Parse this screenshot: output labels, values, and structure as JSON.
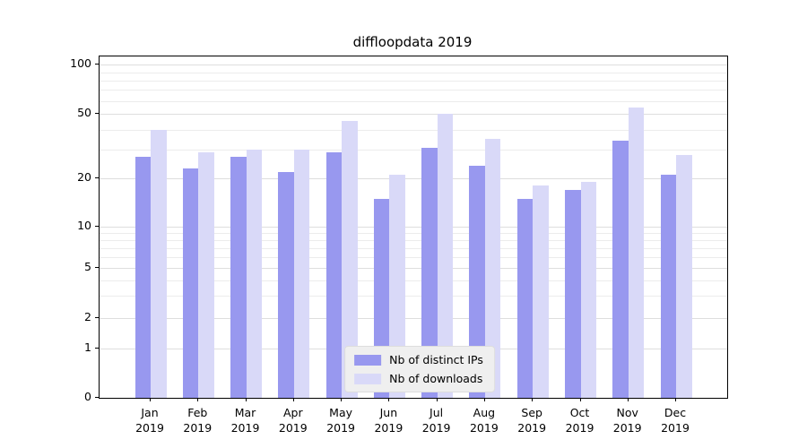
{
  "title": "diffloopdata 2019",
  "chart_data": {
    "type": "bar",
    "title": "diffloopdata 2019",
    "categories": [
      "Jan 2019",
      "Feb 2019",
      "Mar 2019",
      "Apr 2019",
      "May 2019",
      "Jun 2019",
      "Jul 2019",
      "Aug 2019",
      "Sep 2019",
      "Oct 2019",
      "Nov 2019",
      "Dec 2019"
    ],
    "series": [
      {
        "name": "Nb of distinct IPs",
        "color": "#9898ef",
        "values": [
          27,
          23,
          27,
          22,
          29,
          15,
          31,
          24,
          15,
          17,
          34,
          21
        ]
      },
      {
        "name": "Nb of downloads",
        "color": "#d9d9f8",
        "values": [
          40,
          29,
          30,
          30,
          45,
          21,
          50,
          35,
          18,
          19,
          55,
          28
        ]
      }
    ],
    "xlabel": "",
    "ylabel": "",
    "y_scale": "symlog",
    "y_ticks": [
      0,
      1,
      2,
      5,
      10,
      20,
      50,
      100
    ],
    "y_tick_labels": [
      "0",
      "1",
      "2",
      "5",
      "10",
      "20",
      "50",
      "100"
    ],
    "ylim": [
      0,
      110
    ],
    "grid": true,
    "legend_position": "lower center"
  },
  "legend": {
    "items": [
      {
        "label": "Nb of distinct IPs",
        "swatch": "#9898ef"
      },
      {
        "label": "Nb of downloads",
        "swatch": "#d9d9f8"
      }
    ]
  }
}
